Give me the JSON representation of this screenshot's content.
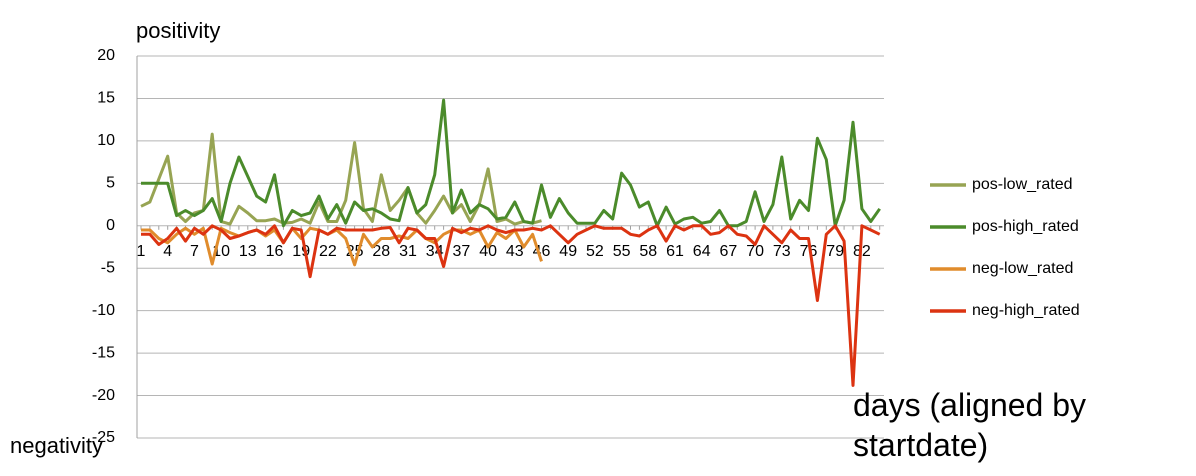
{
  "chart_data": {
    "type": "line",
    "y_label_top": "positivity",
    "y_label_bottom": "negativity",
    "x_label": "days (aligned by startdate)",
    "categories": [
      1,
      null,
      null,
      4,
      null,
      null,
      7,
      null,
      null,
      10,
      null,
      null,
      13,
      null,
      null,
      16,
      null,
      null,
      19,
      null,
      null,
      22,
      null,
      null,
      25,
      null,
      null,
      28,
      null,
      null,
      31,
      null,
      null,
      34,
      null,
      null,
      37,
      null,
      null,
      40,
      null,
      null,
      43,
      null,
      null,
      46,
      null,
      null,
      49,
      null,
      null,
      52,
      null,
      null,
      55,
      null,
      null,
      58,
      null,
      null,
      61,
      null,
      null,
      64,
      null,
      null,
      67,
      null,
      null,
      70,
      null,
      null,
      73,
      null,
      null,
      76,
      null,
      null,
      79,
      null,
      null,
      82,
      null,
      null
    ],
    "ylim": [
      -25,
      20
    ],
    "yticks": [
      20,
      15,
      10,
      5,
      0,
      -5,
      -10,
      -15,
      -20,
      -25
    ],
    "grid": true,
    "legend": "right",
    "series": [
      {
        "name": "pos-low_rated",
        "color": "#97a453",
        "values": [
          2.3,
          2.8,
          5.5,
          8.2,
          1.5,
          0.5,
          1.5,
          1.8,
          10.8,
          0.5,
          0.2,
          2.3,
          1.5,
          0.6,
          0.6,
          0.8,
          0.3,
          0.4,
          0.8,
          0.3,
          2.8,
          0.5,
          0.5,
          3,
          9.8,
          2,
          0.5,
          6,
          1.8,
          3,
          4.5,
          1.5,
          0.3,
          1.8,
          3.5,
          1.5,
          2.5,
          0.5,
          2.5,
          6.7,
          0.5,
          0.8,
          0.2,
          0.5,
          0.3,
          0.6,
          null,
          null,
          null,
          null,
          null,
          null,
          null,
          null,
          null,
          null,
          null,
          null,
          null,
          null,
          null,
          null,
          null,
          null,
          null,
          null,
          null,
          null,
          null,
          null,
          null,
          null,
          null,
          null,
          null,
          null,
          null,
          null,
          null,
          null,
          null,
          null,
          null,
          null
        ]
      },
      {
        "name": "pos-high_rated",
        "color": "#4b8b2b",
        "values": [
          5,
          5,
          5,
          5,
          1.2,
          1.8,
          1.2,
          1.8,
          3.2,
          0.5,
          5,
          8.1,
          5.8,
          3.5,
          2.8,
          6,
          0,
          1.8,
          1.2,
          1.5,
          3.5,
          0.8,
          2.5,
          0.3,
          2.8,
          1.8,
          2,
          1.5,
          0.8,
          0.6,
          4.5,
          1.5,
          2.5,
          6,
          14.8,
          1.5,
          4.2,
          1.5,
          2.5,
          2,
          0.8,
          1,
          2.8,
          0.5,
          0.3,
          4.8,
          1,
          3.2,
          1.5,
          0.3,
          0.3,
          0.3,
          1.8,
          0.8,
          6.2,
          4.8,
          2.2,
          2.8,
          0,
          2.2,
          0.2,
          0.8,
          1,
          0.3,
          0.5,
          1.8,
          0,
          0,
          0.5,
          4,
          0.5,
          2.5,
          8.1,
          0.8,
          3,
          1.8,
          10.3,
          7.8,
          0,
          3,
          12.2,
          2,
          0.5,
          2
        ]
      },
      {
        "name": "neg-low_rated",
        "color": "#e08c2c",
        "values": [
          -0.5,
          -0.5,
          -1.5,
          -2,
          -1,
          -0.3,
          -1,
          -0.3,
          -4.5,
          -0.3,
          -0.8,
          -1.2,
          -0.8,
          -0.5,
          -1.2,
          -0.5,
          -2,
          -0.3,
          -1.5,
          -0.3,
          -0.5,
          -1,
          -0.5,
          -1.5,
          -4.6,
          -1,
          -2.5,
          -1.5,
          -1.5,
          -1.2,
          -1.5,
          -0.5,
          -1.5,
          -2,
          -1,
          -0.5,
          -0.5,
          -1,
          -0.5,
          -2.5,
          -0.8,
          -1.5,
          -0.5,
          -2.5,
          -1,
          -4.2,
          null,
          null,
          null,
          null,
          null,
          null,
          null,
          null,
          null,
          null,
          null,
          null,
          null,
          null,
          null,
          null,
          null,
          null,
          null,
          null,
          null,
          null,
          null,
          null,
          null,
          null,
          null,
          null,
          null,
          null,
          null,
          null,
          null,
          null,
          null,
          null,
          null,
          null
        ]
      },
      {
        "name": "neg-high_rated",
        "color": "#dc3311",
        "values": [
          -1,
          -1,
          -2.2,
          -1.5,
          -0.3,
          -1.8,
          -0.3,
          -1,
          0,
          -0.5,
          -1.5,
          -1.2,
          -0.8,
          -0.5,
          -1,
          0,
          -2,
          -0.3,
          -0.5,
          -6,
          -0.5,
          -1,
          -0.3,
          -0.5,
          -0.5,
          -0.5,
          -0.5,
          -0.3,
          -0.2,
          -2,
          -0.3,
          -0.5,
          -1.5,
          -1.5,
          -4.8,
          -0.3,
          -0.8,
          -0.3,
          -0.5,
          0,
          -0.5,
          -0.8,
          -0.5,
          -0.5,
          -0.3,
          -0.5,
          0,
          -1,
          -2,
          -1,
          -0.5,
          0,
          -0.3,
          -0.3,
          -0.3,
          -1,
          -1.2,
          -0.5,
          0,
          -1.8,
          0,
          -0.5,
          0,
          0,
          -1,
          -0.8,
          0,
          -1,
          -1.2,
          -2.2,
          0,
          -1,
          -2,
          -0.5,
          -1.5,
          -1.5,
          -8.8,
          -1,
          0,
          -1.8,
          -18.8,
          0,
          -0.5,
          -1
        ]
      }
    ]
  }
}
